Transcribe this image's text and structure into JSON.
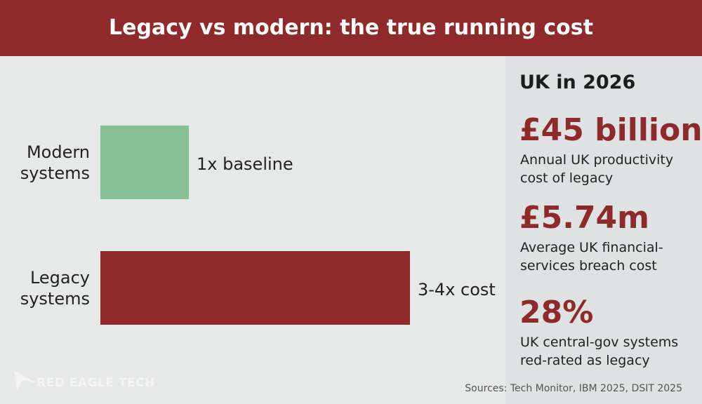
{
  "chart_data": {
    "type": "bar",
    "orientation": "horizontal",
    "title": "Legacy vs modern: the true running cost",
    "categories": [
      "Modern systems",
      "Legacy systems"
    ],
    "values": [
      1,
      3.5
    ],
    "value_labels": [
      "1x baseline",
      "3-4x cost"
    ],
    "colors": [
      "#86c196",
      "#8e2a2a"
    ]
  },
  "sidebar": {
    "heading": "UK in 2026",
    "stats": [
      {
        "value": "£45 billion",
        "description": "Annual UK productivity cost of legacy"
      },
      {
        "value": "£5.74m",
        "description": "Average UK financial-services breach cost"
      },
      {
        "value": "28%",
        "description": "UK central-gov systems red-rated as legacy"
      }
    ]
  },
  "footer": {
    "brand": "RED EAGLE TECH",
    "sources": "Sources: Tech Monitor, IBM 2025, DSIT 2025"
  }
}
